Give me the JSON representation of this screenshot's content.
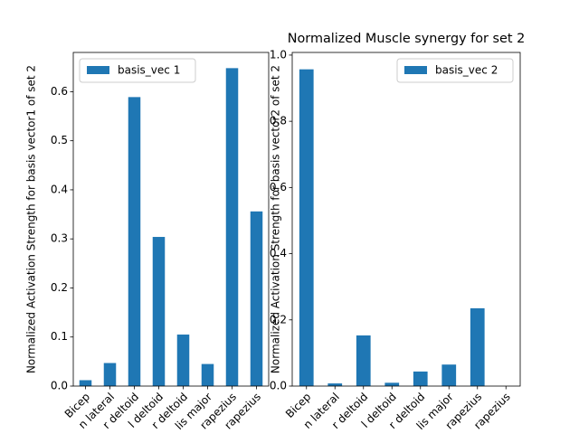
{
  "chart_data": [
    {
      "type": "bar",
      "ylabel": "Normalized Activation Strength for basis vector1 of set 2",
      "categories": [
        "Bicep",
        "n lateral",
        "r deltoid",
        "l deltoid",
        "r deltoid",
        "lis major",
        "rapezius",
        "rapezius"
      ],
      "series": [
        {
          "name": "basis_vec 1",
          "color": "#1f77b4",
          "values": [
            0.012,
            0.047,
            0.589,
            0.304,
            0.105,
            0.045,
            0.648,
            0.356
          ]
        }
      ],
      "ylim": [
        0,
        0.68
      ],
      "yticks": [
        {
          "value": 0,
          "label": "0.0"
        },
        0.1,
        0.2,
        0.3,
        0.4,
        0.5,
        0.6
      ],
      "legend": "upper left"
    },
    {
      "type": "bar",
      "title": "Normalized Muscle synergy for set 2",
      "ylabel": "Normalized Activation Strength for basis vector2 of set 2",
      "categories": [
        "Bicep",
        "n lateral",
        "r deltoid",
        "l deltoid",
        "r deltoid",
        "lis major",
        "rapezius",
        "rapezius"
      ],
      "series": [
        {
          "name": "basis_vec 2",
          "color": "#1f77b4",
          "values": [
            0.957,
            0.008,
            0.153,
            0.01,
            0.044,
            0.065,
            0.235,
            0
          ]
        }
      ],
      "ylim": [
        0,
        1.008
      ],
      "yticks": [
        {
          "value": 0,
          "label": "0.0"
        },
        0.2,
        0.4,
        0.6,
        0.8,
        {
          "value": 1,
          "label": "1.0"
        }
      ],
      "legend": "upper right"
    }
  ]
}
